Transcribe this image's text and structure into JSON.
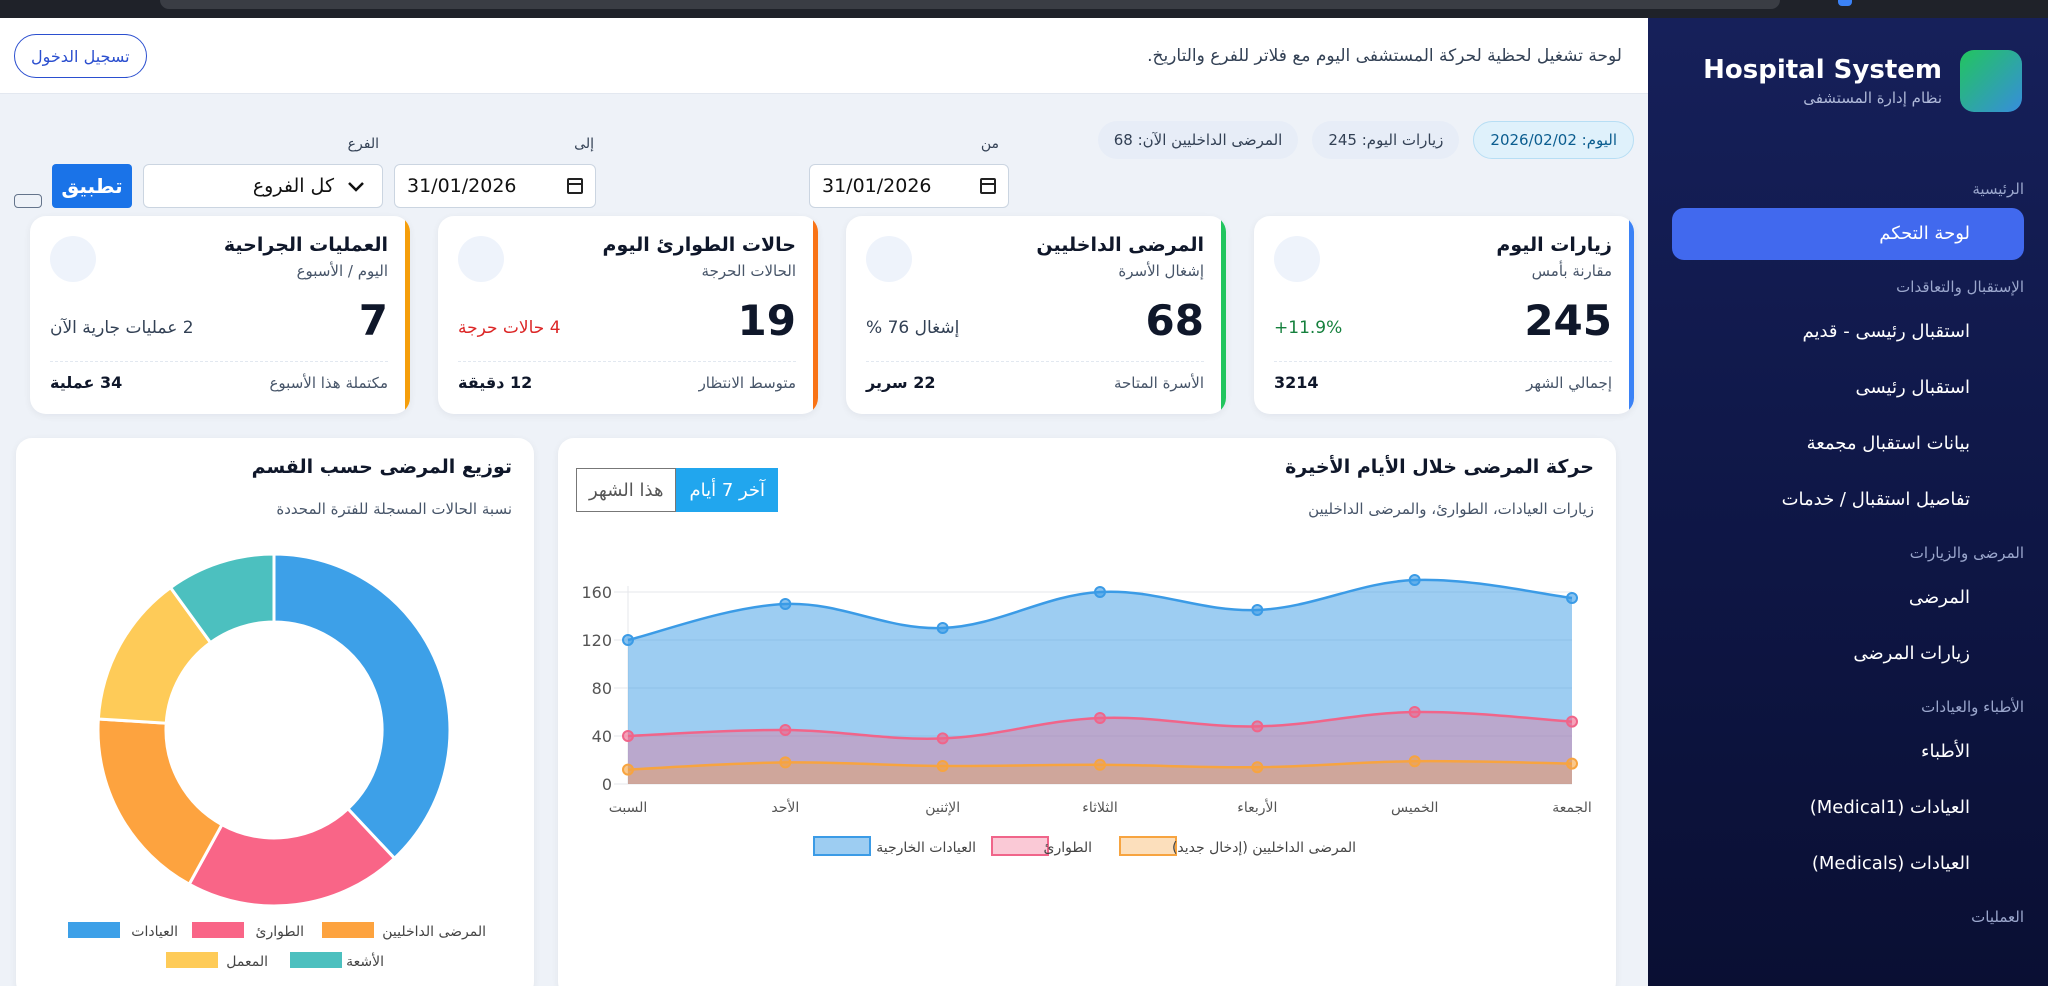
{
  "sidebar": {
    "brand_title": "Hospital System",
    "brand_subtitle": "نظام إدارة المستشفى",
    "sections": [
      {
        "label": "الرئيسية",
        "items": [
          {
            "label": "لوحة التحكم",
            "active": true
          }
        ]
      },
      {
        "label": "الإستقبال والتعاقدات",
        "items": [
          {
            "label": "استقبال رئيسى - قديم"
          },
          {
            "label": "استقبال رئيسى"
          },
          {
            "label": "بيانات استقبال مجمعة"
          },
          {
            "label": "تفاصيل استقبال / خدمات"
          }
        ]
      },
      {
        "label": "المرضى والزيارات",
        "items": [
          {
            "label": "المرضى"
          },
          {
            "label": "زيارات المرضى"
          }
        ]
      },
      {
        "label": "الأطباء والعيادات",
        "items": [
          {
            "label": "الأطباء"
          },
          {
            "label": "العيادات (Medical1)"
          },
          {
            "label": "العيادات (Medicals)"
          }
        ]
      },
      {
        "label": "العمليات",
        "items": []
      }
    ]
  },
  "header": {
    "description": "لوحة تشغيل لحظية لحركة المستشفى اليوم مع فلاتر للفرع والتاريخ.",
    "login_label": "تسجيل الدخول"
  },
  "chips": {
    "today": "اليوم: 2026/02/02",
    "visits": "زيارات اليوم: 245",
    "inpatients": "المرضى الداخليين الآن: 68"
  },
  "filters": {
    "from_label": "من",
    "from_value": "31/01/2026",
    "to_label": "إلى",
    "to_value": "31/01/2026",
    "branch_label": "الفرع",
    "branch_value": "كل الفروع",
    "apply_label": "تطبيق"
  },
  "cards": [
    {
      "title": "زيارات اليوم",
      "subtitle": "مقارنة بأمس",
      "value": "245",
      "note": "11.9%+",
      "note_color": "#15803d",
      "footer_label": "إجمالي الشهر",
      "footer_value": "3214",
      "accent": "#3b82f6"
    },
    {
      "title": "المرضى الداخليين",
      "subtitle": "إشغال الأسرة",
      "value": "68",
      "note": "إشغال 76 %",
      "note_color": "#334155",
      "footer_label": "الأسرة المتاحة",
      "footer_value": "22 سرير",
      "accent": "#22c55e"
    },
    {
      "title": "حالات الطوارئ اليوم",
      "subtitle": "الحالات الحرجة",
      "value": "19",
      "note": "4 حالات حرجة",
      "note_color": "#dc2626",
      "footer_label": "متوسط الانتظار",
      "footer_value": "12 دقيقة",
      "accent": "#f97316"
    },
    {
      "title": "العمليات الجراحية",
      "subtitle": "اليوم / الأسبوع",
      "value": "7",
      "note": "2 عمليات جارية الآن",
      "note_color": "#334155",
      "footer_label": "مكتملة هذا الأسبوع",
      "footer_value": "34 عملية",
      "accent": "#f59e0b"
    }
  ],
  "line_panel": {
    "title": "حركة المرضى خلال الأيام الأخيرة",
    "subtitle": "زيارات العيادات، الطوارئ، والمرضى الداخليين",
    "tab_week": "آخر 7 أيام",
    "tab_month": "هذا الشهر"
  },
  "donut_panel": {
    "title": "توزيع المرضى حسب القسم",
    "subtitle": "نسبة الحالات المسجلة للفترة المحددة"
  },
  "chart_data": [
    {
      "type": "area",
      "categories": [
        "السبت",
        "الأحد",
        "الإثنين",
        "الثلاثاء",
        "الأربعاء",
        "الخميس",
        "الجمعة"
      ],
      "series": [
        {
          "name": "العيادات الخارجية",
          "values": [
            120,
            150,
            130,
            160,
            145,
            170,
            155
          ],
          "color": "#3b9be6"
        },
        {
          "name": "الطوارئ",
          "values": [
            40,
            45,
            38,
            55,
            48,
            60,
            52
          ],
          "color": "#f0658a"
        },
        {
          "name": "المرضى الداخليين (إدخال جديد)",
          "values": [
            12,
            18,
            15,
            16,
            14,
            19,
            17
          ],
          "color": "#f7a440"
        }
      ],
      "ylim": [
        0,
        170
      ],
      "yticks": [
        0,
        40,
        80,
        120,
        160
      ],
      "grid": true,
      "legend": "bottom"
    },
    {
      "type": "pie",
      "donut": true,
      "labels": [
        "العيادات",
        "الطوارئ",
        "المرضى الداخليين",
        "المعمل",
        "الأشعة"
      ],
      "values": [
        38,
        20,
        18,
        14,
        10
      ],
      "colors": [
        "#3da0e8",
        "#f96587",
        "#fda33f",
        "#fecb58",
        "#4cc0bf"
      ],
      "legend": "bottom"
    }
  ]
}
